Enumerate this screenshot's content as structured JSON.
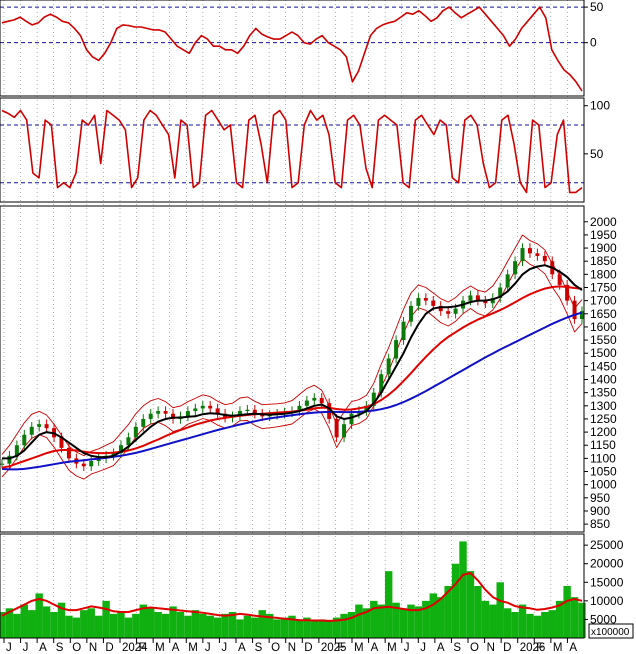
{
  "colors": {
    "price_up": "#0a7a0a",
    "price_down": "#cc0000",
    "ma_short": "#000000",
    "ma_mid": "#e00000",
    "ma_long": "#1010c8",
    "bollinger": "#cc0000",
    "volume_bar": "#10b010",
    "volume_ma": "#e00000",
    "osc_line": "#d00000",
    "guide_line": "#1010a0",
    "frame": "#000000"
  },
  "x_axis": {
    "labels": [
      "J",
      "J",
      "A",
      "S",
      "O",
      "N",
      "D",
      "2024",
      "F",
      "M",
      "A",
      "M",
      "J",
      "J",
      "A",
      "S",
      "O",
      "N",
      "D",
      "2025",
      "F",
      "M",
      "A",
      "M",
      "J",
      "J",
      "A",
      "S",
      "O",
      "N",
      "D",
      "2026",
      "F",
      "M",
      "A"
    ],
    "grid_dashed": true
  },
  "chart_data": [
    {
      "type": "line",
      "name": "top oscillator",
      "ylim": [
        -75,
        60
      ],
      "yticks": [
        50,
        0
      ],
      "guide_levels": [
        50,
        0
      ],
      "series": [
        {
          "name": "",
          "values": [
            28,
            30,
            32,
            36,
            30,
            25,
            28,
            36,
            40,
            36,
            30,
            28,
            20,
            10,
            -10,
            -20,
            -25,
            -15,
            0,
            20,
            25,
            24,
            22,
            22,
            20,
            18,
            18,
            15,
            5,
            -5,
            -10,
            -15,
            0,
            10,
            5,
            -5,
            -5,
            -10,
            -10,
            -15,
            -5,
            10,
            20,
            12,
            8,
            5,
            5,
            10,
            15,
            10,
            0,
            -2,
            5,
            10,
            0,
            -5,
            -10,
            -20,
            -55,
            -40,
            -15,
            10,
            20,
            25,
            28,
            30,
            36,
            42,
            40,
            45,
            38,
            30,
            35,
            45,
            50,
            42,
            35,
            40,
            45,
            50,
            40,
            30,
            20,
            10,
            -5,
            5,
            20,
            30,
            40,
            50,
            35,
            -10,
            -25,
            -38,
            -45,
            -55,
            -68
          ]
        }
      ]
    },
    {
      "type": "line",
      "name": "stochastic",
      "ylim": [
        0,
        108
      ],
      "yticks": [
        100,
        50
      ],
      "guide_levels": [
        80,
        20
      ],
      "series": [
        {
          "name": "",
          "values": [
            95,
            92,
            88,
            95,
            85,
            30,
            25,
            85,
            80,
            15,
            20,
            15,
            30,
            85,
            80,
            90,
            40,
            95,
            90,
            85,
            75,
            15,
            25,
            85,
            95,
            90,
            80,
            70,
            25,
            85,
            80,
            15,
            20,
            90,
            95,
            85,
            75,
            80,
            20,
            15,
            85,
            90,
            60,
            20,
            90,
            95,
            85,
            15,
            20,
            80,
            95,
            85,
            90,
            70,
            20,
            15,
            85,
            90,
            80,
            35,
            15,
            85,
            90,
            85,
            80,
            20,
            15,
            85,
            90,
            80,
            70,
            85,
            80,
            25,
            20,
            85,
            90,
            80,
            40,
            15,
            20,
            85,
            90,
            60,
            20,
            10,
            85,
            80,
            15,
            20,
            70,
            85,
            10,
            10,
            15
          ]
        }
      ]
    },
    {
      "type": "line",
      "name": "price",
      "ylim": [
        820,
        2060
      ],
      "yticks": [
        2000,
        1950,
        1900,
        1850,
        1800,
        1750,
        1700,
        1650,
        1600,
        1550,
        1500,
        1450,
        1400,
        1350,
        1300,
        1250,
        1200,
        1150,
        1100,
        1050,
        1000,
        950,
        900,
        850
      ],
      "series": [
        {
          "name": "",
          "values": [
            1080,
            1110,
            1150,
            1190,
            1220,
            1230,
            1215,
            1180,
            1140,
            1100,
            1080,
            1070,
            1090,
            1100,
            1110,
            1120,
            1150,
            1180,
            1220,
            1250,
            1270,
            1280,
            1270,
            1250,
            1260,
            1280,
            1290,
            1300,
            1290,
            1270,
            1255,
            1260,
            1280,
            1285,
            1270,
            1260,
            1265,
            1270,
            1275,
            1280,
            1300,
            1320,
            1330,
            1310,
            1250,
            1180,
            1230,
            1270,
            1280,
            1300,
            1350,
            1420,
            1480,
            1550,
            1620,
            1680,
            1710,
            1700,
            1680,
            1660,
            1650,
            1670,
            1700,
            1720,
            1700,
            1690,
            1710,
            1750,
            1800,
            1850,
            1900,
            1880,
            1870,
            1850,
            1800,
            1760,
            1700,
            1630,
            1660
          ]
        },
        {
          "name": "",
          "values": [
            1100,
            1100,
            1110,
            1130,
            1160,
            1190,
            1200,
            1195,
            1180,
            1160,
            1140,
            1120,
            1110,
            1105,
            1105,
            1110,
            1125,
            1145,
            1170,
            1195,
            1220,
            1240,
            1250,
            1255,
            1255,
            1258,
            1260,
            1268,
            1272,
            1270,
            1265,
            1262,
            1265,
            1268,
            1270,
            1268,
            1266,
            1268,
            1270,
            1274,
            1280,
            1290,
            1300,
            1305,
            1290,
            1260,
            1250,
            1255,
            1265,
            1280,
            1310,
            1350,
            1400,
            1450,
            1500,
            1560,
            1610,
            1650,
            1670,
            1675,
            1675,
            1678,
            1685,
            1695,
            1700,
            1700,
            1705,
            1715,
            1735,
            1765,
            1800,
            1820,
            1830,
            1835,
            1825,
            1810,
            1790,
            1760,
            1740
          ]
        },
        {
          "name": "",
          "values": [
            1065,
            1070,
            1080,
            1090,
            1100,
            1110,
            1120,
            1128,
            1132,
            1132,
            1130,
            1126,
            1122,
            1120,
            1120,
            1122,
            1125,
            1130,
            1138,
            1148,
            1160,
            1172,
            1185,
            1197,
            1208,
            1218,
            1228,
            1236,
            1244,
            1250,
            1254,
            1258,
            1262,
            1265,
            1268,
            1270,
            1272,
            1274,
            1276,
            1278,
            1281,
            1285,
            1290,
            1293,
            1292,
            1288,
            1285,
            1286,
            1290,
            1296,
            1306,
            1322,
            1342,
            1366,
            1394,
            1424,
            1456,
            1486,
            1514,
            1540,
            1562,
            1580,
            1598,
            1614,
            1628,
            1640,
            1652,
            1664,
            1678,
            1694,
            1710,
            1724,
            1736,
            1746,
            1752,
            1754,
            1752,
            1748,
            1745
          ]
        },
        {
          "name": "",
          "values": [
            1060,
            1058,
            1058,
            1060,
            1064,
            1068,
            1073,
            1078,
            1083,
            1087,
            1090,
            1093,
            1096,
            1099,
            1102,
            1106,
            1110,
            1115,
            1121,
            1128,
            1136,
            1144,
            1152,
            1160,
            1168,
            1176,
            1184,
            1192,
            1200,
            1208,
            1215,
            1222,
            1229,
            1235,
            1241,
            1247,
            1252,
            1256,
            1260,
            1264,
            1268,
            1271,
            1274,
            1276,
            1277,
            1277,
            1276,
            1276,
            1277,
            1279,
            1282,
            1287,
            1294,
            1303,
            1314,
            1327,
            1341,
            1356,
            1372,
            1388,
            1404,
            1420,
            1436,
            1452,
            1468,
            1484,
            1499,
            1514,
            1528,
            1542,
            1556,
            1570,
            1584,
            1598,
            1612,
            1624,
            1636,
            1646,
            1655
          ]
        }
      ]
    },
    {
      "type": "bar",
      "name": "volume",
      "ylim": [
        0,
        28000
      ],
      "yticks": [
        25000,
        20000,
        15000,
        10000,
        5000
      ],
      "unit_label": "x100000",
      "series": [
        {
          "name": "",
          "values": [
            7000,
            8000,
            6500,
            9000,
            7500,
            12000,
            8500,
            7000,
            9500,
            6000,
            5500,
            7500,
            8000,
            6000,
            10000,
            6500,
            7000,
            5500,
            6500,
            9000,
            8000,
            7000,
            6500,
            8500,
            7000,
            6000,
            7500,
            6500,
            6000,
            5500,
            6500,
            7000,
            5000,
            6000,
            5500,
            7500,
            6500,
            5000,
            5500,
            6000,
            5000,
            5500,
            4500,
            5000,
            4500,
            5500,
            6500,
            7000,
            9000,
            8000,
            10000,
            9000,
            18000,
            9500,
            8000,
            9000,
            8500,
            10000,
            12000,
            11000,
            14000,
            20000,
            26000,
            18000,
            14000,
            10000,
            9000,
            15000,
            8000,
            7000,
            9000,
            6500,
            6000,
            7000,
            7500,
            10000,
            14000,
            11000,
            9500
          ]
        },
        {
          "name": "",
          "values": [
            6000,
            7000,
            8000,
            9000,
            10000,
            10500,
            10000,
            9000,
            8000,
            7500,
            7500,
            8000,
            8500,
            8200,
            7800,
            7200,
            7000,
            7000,
            7500,
            8000,
            8200,
            8000,
            7800,
            7600,
            7400,
            7200,
            7000,
            6800,
            6500,
            6200,
            6000,
            6200,
            6500,
            6300,
            6000,
            5800,
            5600,
            5400,
            5200,
            5000,
            4800,
            4800,
            4700,
            4700,
            4600,
            4700,
            4900,
            5400,
            6300,
            7000,
            8000,
            8200,
            8400,
            8100,
            7800,
            7500,
            7500,
            8000,
            9000,
            10500,
            12500,
            14500,
            17000,
            17500,
            15500,
            13000,
            11000,
            10000,
            9500,
            8600,
            8200,
            8000,
            7600,
            7800,
            8200,
            8800,
            10000,
            10500,
            10000
          ]
        }
      ]
    }
  ]
}
